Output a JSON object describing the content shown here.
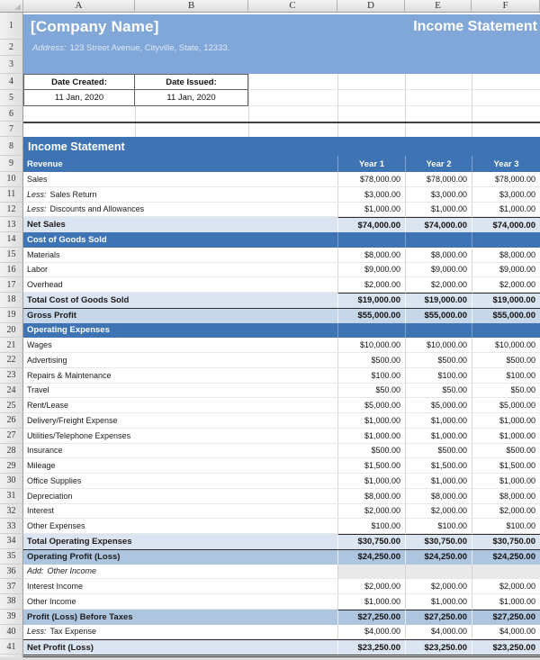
{
  "columns": {
    "letters": [
      "A",
      "B",
      "C",
      "D",
      "E",
      "F"
    ]
  },
  "gutter_numbers": [
    "1",
    "2",
    "3",
    "4",
    "5",
    "6",
    "7",
    "8",
    "9"
  ],
  "banner": {
    "company_name": "[Company Name]",
    "title": "Income Statement",
    "address_label": "Address:",
    "address_text": "123 Street Avenue, Cityville, State, 12333."
  },
  "dates": {
    "created_label": "Date Created:",
    "issued_label": "Date Issued:",
    "created_value": "11 Jan, 2020",
    "issued_value": "11 Jan, 2020"
  },
  "statement": {
    "banner_title": "Income Statement",
    "revenue_header": {
      "n": "9",
      "label": "Revenue",
      "columns": [
        "Year 1",
        "Year 2",
        "Year 3"
      ]
    },
    "rows": [
      {
        "n": 10,
        "type": "item",
        "label": "Sales",
        "values": [
          "$78,000.00",
          "$78,000.00",
          "$78,000.00"
        ]
      },
      {
        "n": 11,
        "type": "item",
        "prefix": "Less:",
        "label": "Sales Return",
        "values": [
          "$3,000.00",
          "$3,000.00",
          "$3,000.00"
        ]
      },
      {
        "n": 12,
        "type": "item",
        "prefix": "Less:",
        "label": "Discounts and Allowances",
        "values": [
          "$1,000.00",
          "$1,000.00",
          "$1,000.00"
        ]
      },
      {
        "n": 13,
        "type": "total",
        "bt": "num",
        "label": "Net Sales",
        "values": [
          "$74,000.00",
          "$74,000.00",
          "$74,000.00"
        ]
      },
      {
        "n": 14,
        "type": "section",
        "label": "Cost of Goods Sold",
        "values": [
          "",
          "",
          ""
        ]
      },
      {
        "n": 15,
        "type": "item",
        "label": "Materials",
        "values": [
          "$8,000.00",
          "$8,000.00",
          "$8,000.00"
        ]
      },
      {
        "n": 16,
        "type": "item",
        "label": "Labor",
        "values": [
          "$9,000.00",
          "$9,000.00",
          "$9,000.00"
        ]
      },
      {
        "n": 17,
        "type": "item",
        "label": "Overhead",
        "values": [
          "$2,000.00",
          "$2,000.00",
          "$2,000.00"
        ]
      },
      {
        "n": 18,
        "type": "total",
        "bt": "num",
        "label": "Total Cost of Goods Sold",
        "values": [
          "$19,000.00",
          "$19,000.00",
          "$19,000.00"
        ]
      },
      {
        "n": 19,
        "type": "subtotal",
        "bt": "full",
        "label": "Gross Profit",
        "values": [
          "$55,000.00",
          "$55,000.00",
          "$55,000.00"
        ]
      },
      {
        "n": 20,
        "type": "section",
        "label": "Operating Expenses",
        "values": [
          "",
          "",
          ""
        ]
      },
      {
        "n": 21,
        "type": "item",
        "label": "Wages",
        "values": [
          "$10,000.00",
          "$10,000.00",
          "$10,000.00"
        ]
      },
      {
        "n": 22,
        "type": "item",
        "label": "Advertising",
        "values": [
          "$500.00",
          "$500.00",
          "$500.00"
        ]
      },
      {
        "n": 23,
        "type": "item",
        "label": "Repairs & Maintenance",
        "values": [
          "$100.00",
          "$100.00",
          "$100.00"
        ]
      },
      {
        "n": 24,
        "type": "item",
        "label": "Travel",
        "values": [
          "$50.00",
          "$50.00",
          "$50.00"
        ]
      },
      {
        "n": 25,
        "type": "item",
        "label": "Rent/Lease",
        "values": [
          "$5,000.00",
          "$5,000.00",
          "$5,000.00"
        ]
      },
      {
        "n": 26,
        "type": "item",
        "label": "Delivery/Freight Expense",
        "values": [
          "$1,000.00",
          "$1,000.00",
          "$1,000.00"
        ]
      },
      {
        "n": 27,
        "type": "item",
        "label": "Utilities/Telephone Expenses",
        "values": [
          "$1,000.00",
          "$1,000.00",
          "$1,000.00"
        ]
      },
      {
        "n": 28,
        "type": "item",
        "label": "Insurance",
        "values": [
          "$500.00",
          "$500.00",
          "$500.00"
        ]
      },
      {
        "n": 29,
        "type": "item",
        "label": "Mileage",
        "values": [
          "$1,500.00",
          "$1,500.00",
          "$1,500.00"
        ]
      },
      {
        "n": 30,
        "type": "item",
        "label": "Office Supplies",
        "values": [
          "$1,000.00",
          "$1,000.00",
          "$1,000.00"
        ]
      },
      {
        "n": 31,
        "type": "item",
        "label": "Depreciation",
        "values": [
          "$8,000.00",
          "$8,000.00",
          "$8,000.00"
        ]
      },
      {
        "n": 32,
        "type": "item",
        "label": "Interest",
        "values": [
          "$2,000.00",
          "$2,000.00",
          "$2,000.00"
        ]
      },
      {
        "n": 33,
        "type": "item",
        "label": "Other Expenses",
        "values": [
          "$100.00",
          "$100.00",
          "$100.00"
        ]
      },
      {
        "n": 34,
        "type": "total",
        "bt": "num",
        "label": "Total Operating Expenses",
        "values": [
          "$30,750.00",
          "$30,750.00",
          "$30,750.00"
        ]
      },
      {
        "n": 35,
        "type": "subtotal2",
        "bt": "full",
        "label": "Operating Profit (Loss)",
        "values": [
          "$24,250.00",
          "$24,250.00",
          "$24,250.00"
        ]
      },
      {
        "n": 36,
        "type": "note",
        "prefix": "Add:",
        "label": "Other Income",
        "values": [
          "",
          "",
          ""
        ]
      },
      {
        "n": 37,
        "type": "item",
        "label": "Interest Income",
        "values": [
          "$2,000.00",
          "$2,000.00",
          "$2,000.00"
        ]
      },
      {
        "n": 38,
        "type": "item",
        "label": "Other Income",
        "values": [
          "$1,000.00",
          "$1,000.00",
          "$1,000.00"
        ]
      },
      {
        "n": 39,
        "type": "subtotal2",
        "bt": "num",
        "label": "Profit (Loss) Before Taxes",
        "values": [
          "$27,250.00",
          "$27,250.00",
          "$27,250.00"
        ]
      },
      {
        "n": 40,
        "type": "item",
        "prefix": "Less:",
        "label": "Tax Expense",
        "values": [
          "$4,000.00",
          "$4,000.00",
          "$4,000.00"
        ]
      },
      {
        "n": 41,
        "type": "final",
        "bt": "full",
        "label": "Net Profit (Loss)",
        "values": [
          "$23,250.00",
          "$23,250.00",
          "$23,250.00"
        ]
      }
    ]
  },
  "colors": {
    "banner_bg": "#81A7D8",
    "section_bg": "#3E74B4",
    "total_bg": "#DBE5F1",
    "subtotal_bg": "#C6D7EA",
    "subtotal2_bg": "#AEC5E0",
    "note_cell_bg": "#E9E9E9",
    "grid_line": "#D8D8D8",
    "dark_rule": "#2C2C2C"
  }
}
